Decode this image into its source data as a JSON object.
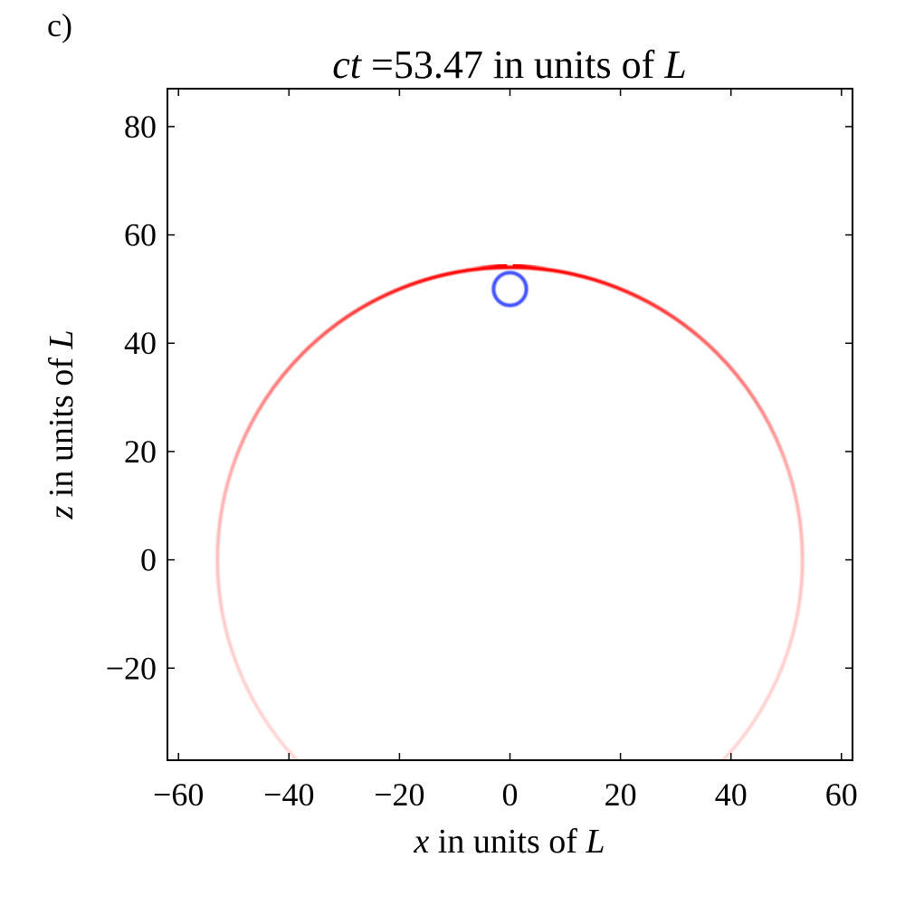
{
  "chart_data": {
    "type": "heatmap",
    "panel_label": "c)",
    "title": {
      "var": "ct",
      "rest": " =53.47 in units of ",
      "unit": "L"
    },
    "xlabel": {
      "var": "x",
      "rest": " in units of ",
      "unit": "L"
    },
    "ylabel": {
      "var": "z",
      "rest": " in units of ",
      "unit": "L"
    },
    "xlim": [
      -62,
      62
    ],
    "ylim": [
      -37,
      87
    ],
    "xticks": [
      -60,
      -40,
      -20,
      0,
      20,
      40,
      60
    ],
    "yticks": [
      -20,
      0,
      20,
      40,
      60,
      80
    ],
    "xtick_labels": [
      "−60",
      "−40",
      "−20",
      "0",
      "20",
      "40",
      "60"
    ],
    "ytick_labels": [
      "−20",
      "0",
      "20",
      "40",
      "60",
      "80"
    ],
    "grid": false,
    "features": {
      "wavefront": {
        "shape": "circle",
        "center": [
          0,
          0
        ],
        "radius": 53.47,
        "color": "#ff0000"
      },
      "source": {
        "shape": "circle",
        "center": [
          0,
          50
        ],
        "radius": 3,
        "color": "#0022ff"
      }
    }
  }
}
